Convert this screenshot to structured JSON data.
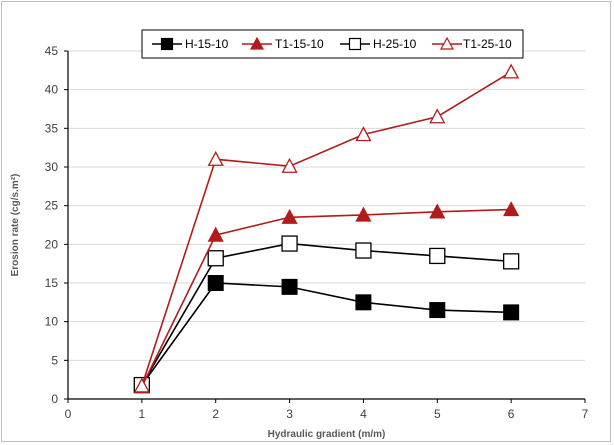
{
  "chart_data": {
    "type": "line",
    "xlabel": "Hydraulic gradient (m/m)",
    "ylabel": "Erosion rate (cg/s.m²)",
    "xlim": [
      0,
      7
    ],
    "ylim": [
      0,
      45
    ],
    "x_ticks": [
      "0",
      "1",
      "2",
      "3",
      "4",
      "5",
      "6",
      "7"
    ],
    "y_ticks": [
      "0",
      "5",
      "10",
      "15",
      "20",
      "25",
      "30",
      "35",
      "40",
      "45"
    ],
    "grid": true,
    "legend_position": "top",
    "x": [
      1,
      2,
      3,
      4,
      5,
      6
    ],
    "series": [
      {
        "name": "H-15-10",
        "marker": "square-filled",
        "color": "#000000",
        "values": [
          1.8,
          15.0,
          14.5,
          12.5,
          11.5,
          11.2
        ]
      },
      {
        "name": "T1-15-10",
        "marker": "triangle-filled",
        "color": "#b01c1c",
        "values": [
          1.6,
          21.2,
          23.5,
          23.8,
          24.2,
          24.5
        ]
      },
      {
        "name": "H-25-10",
        "marker": "square-open",
        "color": "#000000",
        "values": [
          1.8,
          18.2,
          20.1,
          19.2,
          18.5,
          17.8
        ]
      },
      {
        "name": "T1-25-10",
        "marker": "triangle-open",
        "color": "#b01c1c",
        "values": [
          1.7,
          31.0,
          30.1,
          34.2,
          36.5,
          42.3
        ]
      }
    ]
  }
}
